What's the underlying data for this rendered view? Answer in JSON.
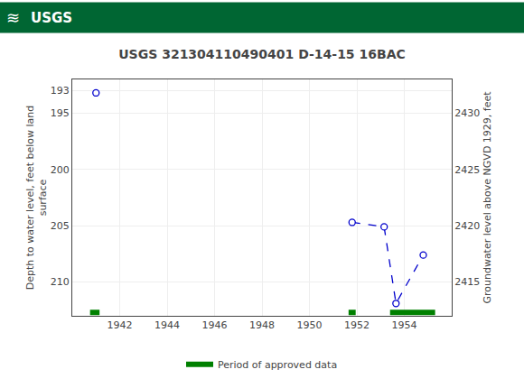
{
  "chart_data": {
    "type": "scatter",
    "title": "USGS 321304110490401 D-14-15 16BAC",
    "annotations": [
      "≋",
      "USGS"
    ],
    "ylabel": "Depth to water level, feet below land\nsurface",
    "y2label": "Groundwater level above NGVD 1929, feet",
    "xlim": [
      1940.0,
      1956.0
    ],
    "xticks": [
      1942,
      1944,
      1946,
      1948,
      1950,
      1952,
      1954
    ],
    "ylim": [
      213.0,
      192.0
    ],
    "yticks": [
      193,
      195,
      200,
      205,
      210
    ],
    "y2lim": [
      2412.0,
      2433.0
    ],
    "y2ticks": [
      2430,
      2425,
      2420,
      2415
    ],
    "grid": true,
    "series": [
      {
        "type": "line",
        "line_style": "dash",
        "color": "#0000cc",
        "x": [
          1951.8,
          1953.15,
          1953.65,
          1954.8
        ],
        "values": [
          204.7,
          205.1,
          211.9,
          207.6
        ]
      },
      {
        "type": "scatter",
        "marker": "circle-open",
        "color": "#0000cc",
        "x": [
          1941.0,
          1951.8,
          1953.15,
          1953.65,
          1954.8
        ],
        "values": [
          193.2,
          204.7,
          205.1,
          211.9,
          207.6
        ]
      },
      {
        "type": "period",
        "name": "Period of approved data",
        "color": "#008000",
        "y": 212.7,
        "periods": [
          {
            "start": 1940.75,
            "end": 1941.15
          },
          {
            "start": 1951.65,
            "end": 1951.95
          },
          {
            "start": 1953.4,
            "end": 1955.3
          }
        ]
      }
    ]
  }
}
